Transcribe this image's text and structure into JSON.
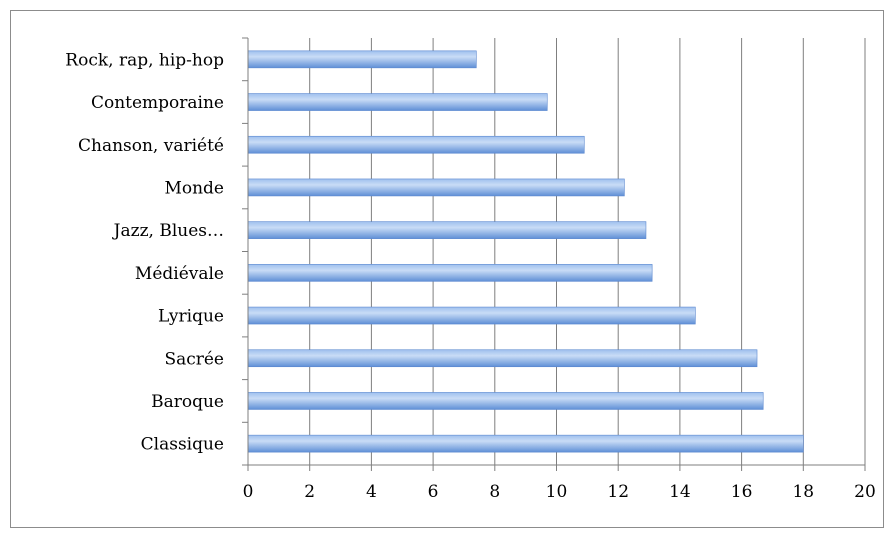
{
  "chart_data": {
    "type": "bar",
    "orientation": "horizontal",
    "categories": [
      "Classique",
      "Baroque",
      "Sacrée",
      "Lyrique",
      "Médiévale",
      "Jazz, Blues…",
      "Monde",
      "Chanson, variété",
      "Contemporaine",
      "Rock, rap, hip-hop"
    ],
    "values": [
      18.0,
      16.7,
      16.5,
      14.5,
      13.1,
      12.9,
      12.2,
      10.9,
      9.7,
      7.4
    ],
    "xlim": [
      0,
      20
    ],
    "xticks": [
      "0",
      "2",
      "4",
      "6",
      "8",
      "10",
      "12",
      "14",
      "16",
      "18",
      "20"
    ],
    "title": "",
    "xlabel": "",
    "ylabel": "",
    "grid": "vertical",
    "legend": "none",
    "colors": {
      "bar_light": "#b9d1f3",
      "bar_mid": "#8fb4ea",
      "bar_dark": "#5f8fd6",
      "gridline": "#7f7f7f",
      "axis": "#7f7f7f",
      "frame": "#8c8c8c"
    }
  }
}
